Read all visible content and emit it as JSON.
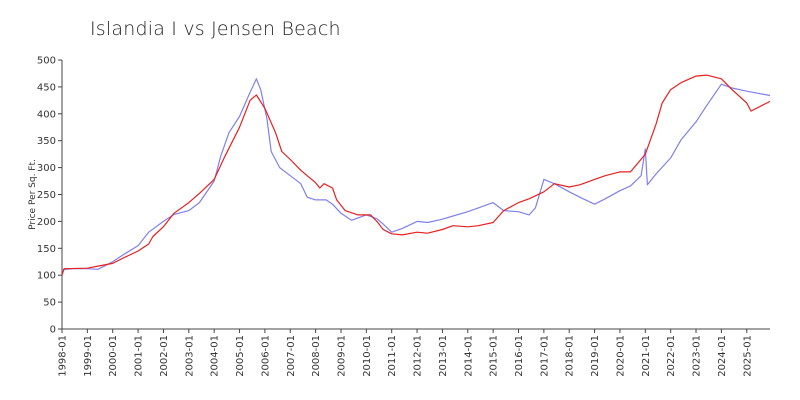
{
  "chart_data": {
    "type": "line",
    "title": "Islandia I vs  Jensen Beach",
    "xlabel": "",
    "ylabel": "Price Per Sq. Ft.",
    "ylim": [
      0,
      500
    ],
    "yticks": [
      0,
      50,
      100,
      150,
      200,
      250,
      300,
      350,
      400,
      450,
      500
    ],
    "xticks": [
      "1998-01",
      "1999-01",
      "2000-01",
      "2001-01",
      "2002-01",
      "2003-01",
      "2004-01",
      "2005-01",
      "2006-01",
      "2007-01",
      "2008-01",
      "2009-01",
      "2010-01",
      "2011-01",
      "2012-01",
      "2013-01",
      "2014-01",
      "2015-01",
      "2016-01",
      "2017-01",
      "2018-01",
      "2019-01",
      "2020-01",
      "2021-01",
      "2022-01",
      "2023-01",
      "2024-01",
      "2025-01"
    ],
    "x_start": "1998-01",
    "x_end": "2025-12",
    "grid": false,
    "legend": "none",
    "series": [
      {
        "color": "#8080ee",
        "points": [
          [
            "1998-01",
            110
          ],
          [
            "1998-06",
            112
          ],
          [
            "1999-01",
            112
          ],
          [
            "1999-06",
            111
          ],
          [
            "2000-01",
            125
          ],
          [
            "2000-06",
            138
          ],
          [
            "2001-01",
            155
          ],
          [
            "2001-06",
            180
          ],
          [
            "2002-01",
            200
          ],
          [
            "2002-06",
            213
          ],
          [
            "2003-01",
            220
          ],
          [
            "2003-06",
            235
          ],
          [
            "2004-01",
            275
          ],
          [
            "2004-04",
            320
          ],
          [
            "2004-08",
            365
          ],
          [
            "2005-01",
            395
          ],
          [
            "2005-06",
            440
          ],
          [
            "2005-09",
            465
          ],
          [
            "2005-11",
            445
          ],
          [
            "2006-02",
            390
          ],
          [
            "2006-04",
            330
          ],
          [
            "2006-08",
            300
          ],
          [
            "2007-01",
            285
          ],
          [
            "2007-06",
            270
          ],
          [
            "2007-09",
            245
          ],
          [
            "2008-01",
            240
          ],
          [
            "2008-06",
            240
          ],
          [
            "2008-09",
            232
          ],
          [
            "2009-01",
            215
          ],
          [
            "2009-06",
            202
          ],
          [
            "2010-01",
            212
          ],
          [
            "2010-06",
            205
          ],
          [
            "2010-09",
            195
          ],
          [
            "2011-01",
            180
          ],
          [
            "2011-06",
            187
          ],
          [
            "2012-01",
            200
          ],
          [
            "2012-06",
            198
          ],
          [
            "2013-01",
            204
          ],
          [
            "2013-06",
            210
          ],
          [
            "2014-01",
            218
          ],
          [
            "2014-06",
            225
          ],
          [
            "2015-01",
            235
          ],
          [
            "2015-06",
            220
          ],
          [
            "2016-01",
            218
          ],
          [
            "2016-06",
            212
          ],
          [
            "2016-09",
            225
          ],
          [
            "2017-01",
            278
          ],
          [
            "2017-06",
            270
          ],
          [
            "2018-01",
            255
          ],
          [
            "2018-06",
            245
          ],
          [
            "2019-01",
            232
          ],
          [
            "2019-06",
            242
          ],
          [
            "2020-01",
            257
          ],
          [
            "2020-06",
            266
          ],
          [
            "2020-11",
            285
          ],
          [
            "2021-01",
            335
          ],
          [
            "2021-02",
            268
          ],
          [
            "2021-06",
            288
          ],
          [
            "2022-01",
            318
          ],
          [
            "2022-06",
            352
          ],
          [
            "2023-01",
            385
          ],
          [
            "2023-06",
            415
          ],
          [
            "2024-01",
            455
          ],
          [
            "2024-06",
            448
          ],
          [
            "2025-01",
            442
          ],
          [
            "2025-12",
            434
          ]
        ]
      },
      {
        "color": "#e82020",
        "points": [
          [
            "1998-01",
            100
          ],
          [
            "1998-02",
            112
          ],
          [
            "1999-01",
            113
          ],
          [
            "1999-06",
            117
          ],
          [
            "2000-01",
            122
          ],
          [
            "2000-06",
            132
          ],
          [
            "2001-01",
            145
          ],
          [
            "2001-06",
            158
          ],
          [
            "2001-08",
            172
          ],
          [
            "2002-01",
            190
          ],
          [
            "2002-06",
            215
          ],
          [
            "2003-01",
            235
          ],
          [
            "2003-06",
            252
          ],
          [
            "2004-01",
            278
          ],
          [
            "2004-06",
            320
          ],
          [
            "2005-01",
            375
          ],
          [
            "2005-06",
            425
          ],
          [
            "2005-09",
            435
          ],
          [
            "2006-01",
            410
          ],
          [
            "2006-06",
            365
          ],
          [
            "2006-09",
            330
          ],
          [
            "2007-01",
            315
          ],
          [
            "2007-06",
            295
          ],
          [
            "2008-01",
            272
          ],
          [
            "2008-03",
            262
          ],
          [
            "2008-05",
            270
          ],
          [
            "2008-09",
            262
          ],
          [
            "2008-11",
            240
          ],
          [
            "2009-03",
            220
          ],
          [
            "2009-09",
            212
          ],
          [
            "2010-03",
            212
          ],
          [
            "2010-06",
            200
          ],
          [
            "2010-09",
            185
          ],
          [
            "2011-01",
            177
          ],
          [
            "2011-06",
            175
          ],
          [
            "2012-01",
            180
          ],
          [
            "2012-06",
            178
          ],
          [
            "2013-01",
            185
          ],
          [
            "2013-06",
            192
          ],
          [
            "2014-01",
            190
          ],
          [
            "2014-06",
            192
          ],
          [
            "2015-01",
            198
          ],
          [
            "2015-06",
            220
          ],
          [
            "2016-01",
            235
          ],
          [
            "2016-06",
            242
          ],
          [
            "2017-01",
            255
          ],
          [
            "2017-06",
            270
          ],
          [
            "2018-01",
            264
          ],
          [
            "2018-06",
            268
          ],
          [
            "2019-01",
            278
          ],
          [
            "2019-06",
            285
          ],
          [
            "2020-01",
            292
          ],
          [
            "2020-06",
            292
          ],
          [
            "2021-01",
            325
          ],
          [
            "2021-06",
            380
          ],
          [
            "2021-09",
            420
          ],
          [
            "2022-01",
            445
          ],
          [
            "2022-06",
            458
          ],
          [
            "2023-01",
            470
          ],
          [
            "2023-06",
            472
          ],
          [
            "2024-01",
            465
          ],
          [
            "2024-06",
            445
          ],
          [
            "2025-01",
            420
          ],
          [
            "2025-03",
            405
          ],
          [
            "2025-12",
            423
          ]
        ]
      }
    ]
  }
}
